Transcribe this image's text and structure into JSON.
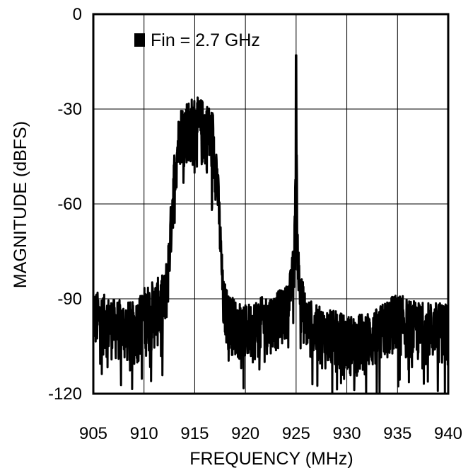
{
  "chart_data": {
    "type": "line",
    "xlabel": "FREQUENCY (MHz)",
    "ylabel": "MAGNITUDE (dBFS)",
    "xlim": [
      905,
      940
    ],
    "ylim": [
      -120,
      0
    ],
    "x_ticks": [
      905,
      910,
      915,
      920,
      925,
      930,
      935,
      940
    ],
    "y_ticks": [
      0,
      -30,
      -60,
      -90,
      -120
    ],
    "x_tick_labels": [
      "905",
      "910",
      "915",
      "920",
      "925",
      "930",
      "935",
      "940"
    ],
    "y_tick_labels": [
      "0",
      "-30",
      "-60",
      "-90",
      "-120"
    ],
    "grid": true,
    "legend_position": "top-left",
    "series": [
      {
        "name": "Fin = 2.7 GHz",
        "color": "#000000",
        "envelope": {
          "x": [
            905,
            907,
            909,
            910,
            911,
            912,
            912.3,
            912.6,
            913,
            913.5,
            914,
            915,
            916,
            916.8,
            917.2,
            917.5,
            917.8,
            918.3,
            919,
            920,
            921,
            922,
            923,
            924,
            924.5,
            924.8,
            924.9,
            925.0,
            925.1,
            925.2,
            925.5,
            926,
            927,
            928,
            929,
            930,
            931,
            932,
            933,
            934,
            935,
            936,
            937,
            938,
            939,
            940
          ],
          "upper": [
            -87,
            -90,
            -91,
            -86,
            -84,
            -82,
            -75,
            -62,
            -42,
            -30,
            -27,
            -26,
            -27,
            -30,
            -42,
            -62,
            -83,
            -88,
            -90,
            -92,
            -90,
            -89,
            -88,
            -86,
            -80,
            -70,
            -55,
            -13,
            -55,
            -72,
            -82,
            -89,
            -92,
            -93,
            -94,
            -95,
            -95,
            -94,
            -93,
            -90,
            -88,
            -90,
            -91,
            -91,
            -91,
            -91
          ],
          "lower": [
            -107,
            -110,
            -112,
            -109,
            -107,
            -104,
            -97,
            -82,
            -62,
            -48,
            -48,
            -49,
            -50,
            -53,
            -63,
            -80,
            -102,
            -107,
            -109,
            -111,
            -110,
            -108,
            -107,
            -104,
            -96,
            -89,
            -80,
            -68,
            -78,
            -91,
            -102,
            -108,
            -111,
            -113,
            -114,
            -115,
            -115,
            -114,
            -113,
            -110,
            -108,
            -110,
            -111,
            -111,
            -111,
            -111
          ]
        },
        "peak": {
          "x": 925,
          "y": -13
        }
      }
    ]
  }
}
